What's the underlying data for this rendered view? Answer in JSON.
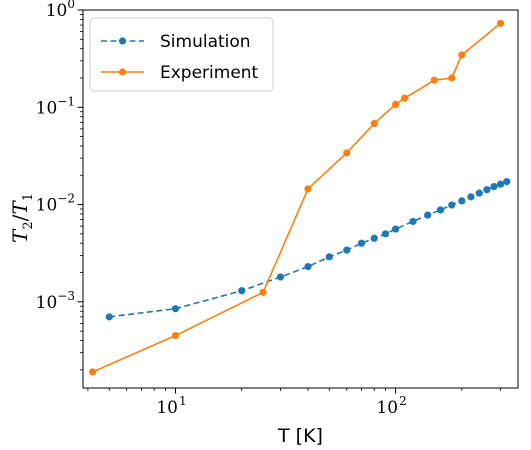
{
  "chart_data": {
    "type": "line",
    "xlabel": "T [K]",
    "ylabel": {
      "base": "T",
      "num_sub": "2",
      "den_sub": "1"
    },
    "xscale": "log",
    "yscale": "log",
    "xlim": [
      3.8,
      360
    ],
    "ylim": [
      0.00013,
      1.0
    ],
    "x_ticks": [
      {
        "value": 10,
        "base": "10",
        "exp": "1"
      },
      {
        "value": 100,
        "base": "10",
        "exp": "2"
      }
    ],
    "y_ticks": [
      {
        "value": 0.001,
        "base": "10",
        "exp": "−3"
      },
      {
        "value": 0.01,
        "base": "10",
        "exp": "−2"
      },
      {
        "value": 0.1,
        "base": "10",
        "exp": "−1"
      },
      {
        "value": 1,
        "base": "10",
        "exp": "0"
      }
    ],
    "grid": false,
    "legend": "top-left",
    "series": [
      {
        "name": "Simulation",
        "color": "#1f77b4",
        "linestyle": "dashed",
        "marker": "circle",
        "x": [
          5,
          10,
          20,
          30,
          40,
          50,
          60,
          70,
          80,
          90,
          100,
          120,
          140,
          160,
          180,
          200,
          220,
          240,
          260,
          280,
          300,
          320
        ],
        "y": [
          0.0007,
          0.00085,
          0.0013,
          0.0018,
          0.0023,
          0.0029,
          0.0034,
          0.004,
          0.0045,
          0.005,
          0.0056,
          0.0067,
          0.0078,
          0.0088,
          0.0099,
          0.0109,
          0.012,
          0.0131,
          0.0142,
          0.0153,
          0.0162,
          0.0172
        ]
      },
      {
        "name": "Experiment",
        "color": "#ff7f0e",
        "linestyle": "solid",
        "marker": "circle",
        "x": [
          4.2,
          10,
          25,
          40,
          60,
          80,
          100,
          110,
          150,
          180,
          200,
          300
        ],
        "y": [
          0.00019,
          0.00045,
          0.00125,
          0.0145,
          0.034,
          0.068,
          0.107,
          0.124,
          0.19,
          0.2,
          0.345,
          0.73
        ]
      }
    ]
  }
}
